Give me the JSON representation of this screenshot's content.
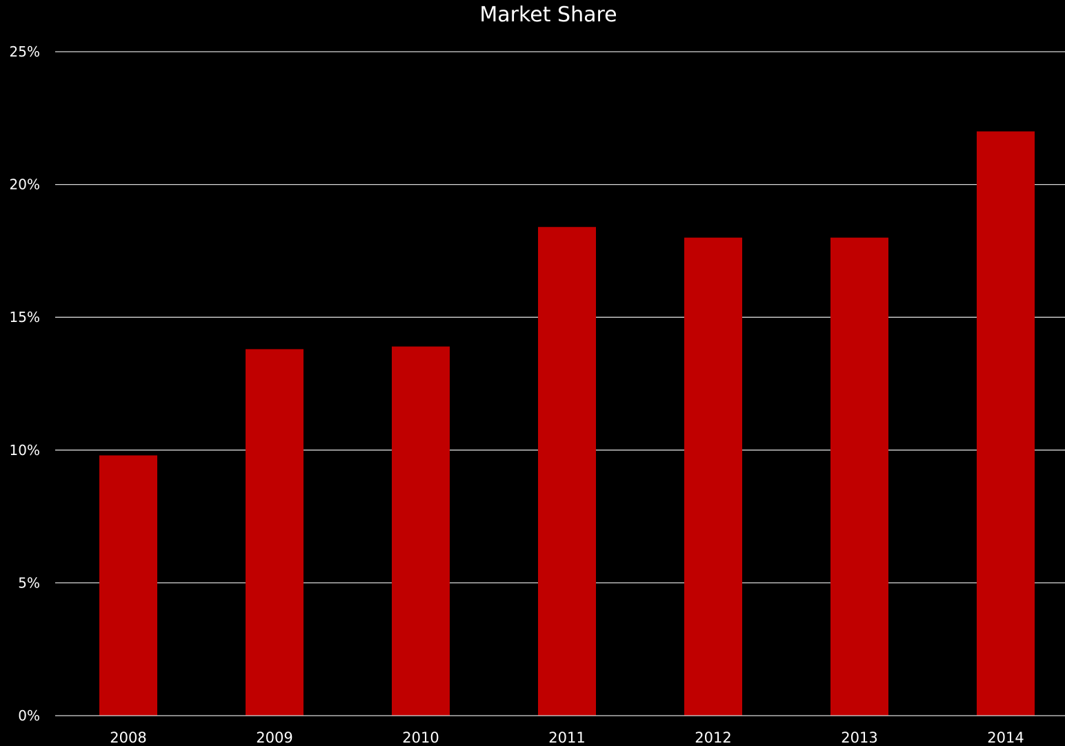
{
  "chart_data": {
    "type": "bar",
    "title": "Market Share",
    "xlabel": "",
    "ylabel": "",
    "categories": [
      "2008",
      "2009",
      "2010",
      "2011",
      "2012",
      "2013",
      "2014"
    ],
    "values": [
      9.8,
      13.8,
      13.9,
      18.4,
      18.0,
      18.0,
      22.0
    ],
    "ylim": [
      0,
      25
    ],
    "y_ticks": [
      0,
      5,
      10,
      15,
      20,
      25
    ],
    "y_tick_labels": [
      "0%",
      "5%",
      "10%",
      "15%",
      "20%",
      "25%"
    ],
    "grid": true,
    "legend": "none",
    "colors": {
      "background": "#000000",
      "bar": "#c00000",
      "grid": "#d9d9d9",
      "text": "#ffffff"
    }
  }
}
